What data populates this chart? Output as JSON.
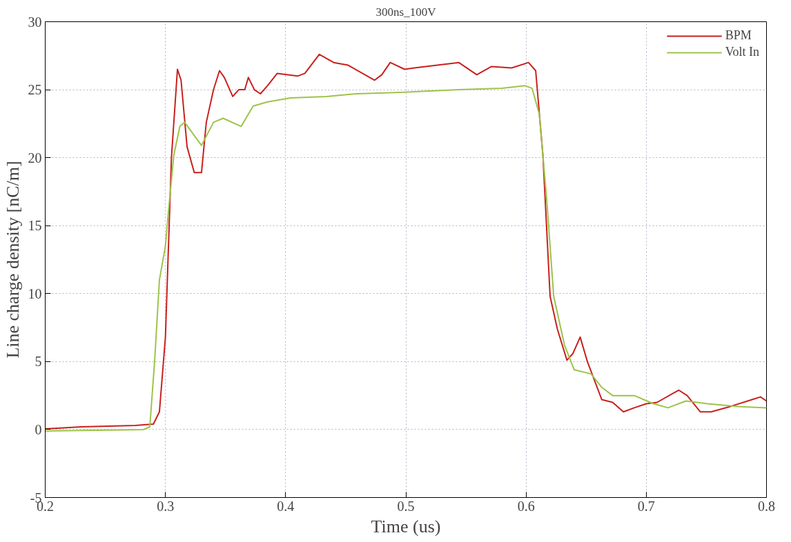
{
  "chart_data": {
    "type": "line",
    "title": "300ns_100V",
    "xlabel": "Time (us)",
    "ylabel": "Line charge density [nC/m]",
    "xlim": [
      0.2,
      0.8
    ],
    "ylim": [
      -5,
      30
    ],
    "xticks": [
      0.2,
      0.3,
      0.4,
      0.5,
      0.6,
      0.7,
      0.8
    ],
    "yticks": [
      -5,
      0,
      5,
      10,
      15,
      20,
      25,
      30
    ],
    "grid": true,
    "legend": "top right",
    "line_style": "solid",
    "series": [
      {
        "name": "BPM",
        "color": "#c8201e",
        "x": [
          0.2,
          0.23,
          0.275,
          0.29,
          0.295,
          0.3,
          0.305,
          0.31,
          0.313,
          0.318,
          0.324,
          0.33,
          0.334,
          0.34,
          0.345,
          0.349,
          0.356,
          0.361,
          0.366,
          0.369,
          0.374,
          0.379,
          0.385,
          0.393,
          0.41,
          0.416,
          0.428,
          0.44,
          0.452,
          0.474,
          0.48,
          0.487,
          0.499,
          0.507,
          0.526,
          0.544,
          0.559,
          0.571,
          0.588,
          0.602,
          0.608,
          0.614,
          0.62,
          0.626,
          0.634,
          0.639,
          0.645,
          0.651,
          0.663,
          0.672,
          0.681,
          0.69,
          0.7,
          0.709,
          0.721,
          0.727,
          0.734,
          0.745,
          0.754,
          0.77,
          0.788,
          0.795,
          0.8
        ],
        "values": [
          0.05,
          0.2,
          0.3,
          0.4,
          1.3,
          6.8,
          20,
          26.5,
          25.7,
          20.8,
          18.9,
          18.9,
          22.6,
          25,
          26.4,
          25.9,
          24.5,
          25,
          25,
          25.9,
          25,
          24.7,
          25.3,
          26.2,
          26,
          26.2,
          27.6,
          27,
          26.8,
          25.7,
          26.1,
          27,
          26.5,
          26.6,
          26.8,
          27,
          26.1,
          26.7,
          26.6,
          27,
          26.4,
          20.2,
          9.8,
          7.4,
          5.1,
          5.6,
          6.8,
          5,
          2.2,
          2,
          1.3,
          1.6,
          1.9,
          2,
          2.6,
          2.9,
          2.5,
          1.3,
          1.3,
          1.7,
          2.2,
          2.4,
          2.1
        ]
      },
      {
        "name": "Volt In",
        "color": "#9dc34a",
        "x": [
          0.2,
          0.282,
          0.287,
          0.291,
          0.295,
          0.3,
          0.303,
          0.307,
          0.312,
          0.316,
          0.33,
          0.34,
          0.348,
          0.363,
          0.373,
          0.385,
          0.404,
          0.434,
          0.459,
          0.495,
          0.544,
          0.58,
          0.599,
          0.605,
          0.611,
          0.617,
          0.623,
          0.632,
          0.64,
          0.654,
          0.663,
          0.672,
          0.69,
          0.706,
          0.718,
          0.733,
          0.751,
          0.776,
          0.8
        ],
        "values": [
          -0.1,
          0,
          0.2,
          5,
          11,
          13.5,
          16.5,
          20.2,
          22.3,
          22.6,
          20.9,
          22.6,
          22.9,
          22.3,
          23.8,
          24.1,
          24.4,
          24.5,
          24.7,
          24.8,
          25,
          25.1,
          25.3,
          25.1,
          23.2,
          17.1,
          9.8,
          6.2,
          4.4,
          4.1,
          3.1,
          2.5,
          2.5,
          1.9,
          1.6,
          2.1,
          1.9,
          1.7,
          1.6
        ]
      }
    ]
  }
}
